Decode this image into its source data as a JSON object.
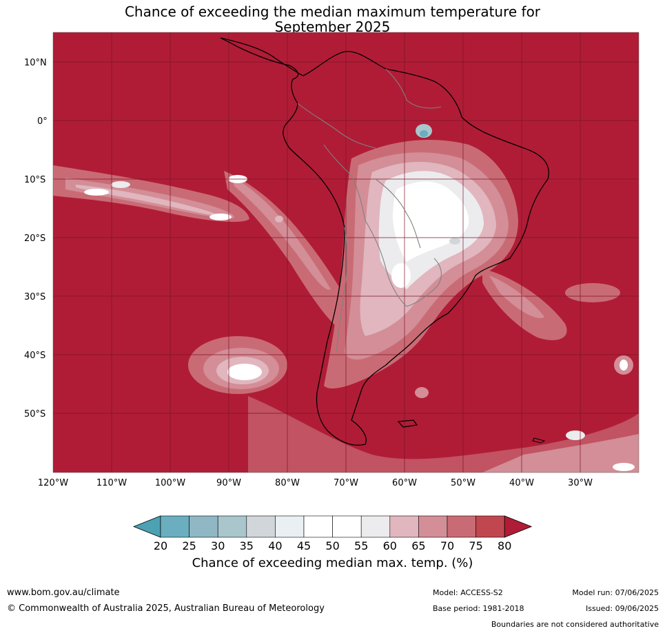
{
  "title": {
    "line1": "Chance of exceeding the median maximum temperature for",
    "line2": "September 2025"
  },
  "map": {
    "longitude_labels": [
      "120°W",
      "110°W",
      "100°W",
      "90°W",
      "80°W",
      "70°W",
      "60°W",
      "50°W",
      "40°W",
      "30°W"
    ],
    "latitude_labels": [
      "10°N",
      "0°",
      "10°S",
      "20°S",
      "30°S",
      "40°S",
      "50°S"
    ],
    "background_color": "#b01c36",
    "outline_color": "#000000",
    "border_color": "#808080"
  },
  "colorbar": {
    "title": "Chance of exceeding median max. temp. (%)",
    "ticks": [
      "20",
      "25",
      "30",
      "35",
      "40",
      "45",
      "50",
      "55",
      "60",
      "65",
      "70",
      "75",
      "80"
    ],
    "colors": [
      "#4ca1b3",
      "#6aaebf",
      "#8fb7c4",
      "#a8c6cc",
      "#d0d6d9",
      "#e9eff2",
      "#ffffff",
      "#ffffff",
      "#ececee",
      "#e1b6be",
      "#d38e97",
      "#c96b75",
      "#c0474f",
      "#b01c36"
    ]
  },
  "footer": {
    "site": "www.bom.gov.au/climate",
    "copyright": "© Commonwealth of Australia 2025, Australian Bureau of Meteorology",
    "model": "Model: ACCESS-S2",
    "base_period": "Base period: 1981-2018",
    "model_run": "Model run: 07/06/2025",
    "issued": "Issued: 09/06/2025",
    "disclaimer": "Boundaries are not considered authoritative"
  }
}
